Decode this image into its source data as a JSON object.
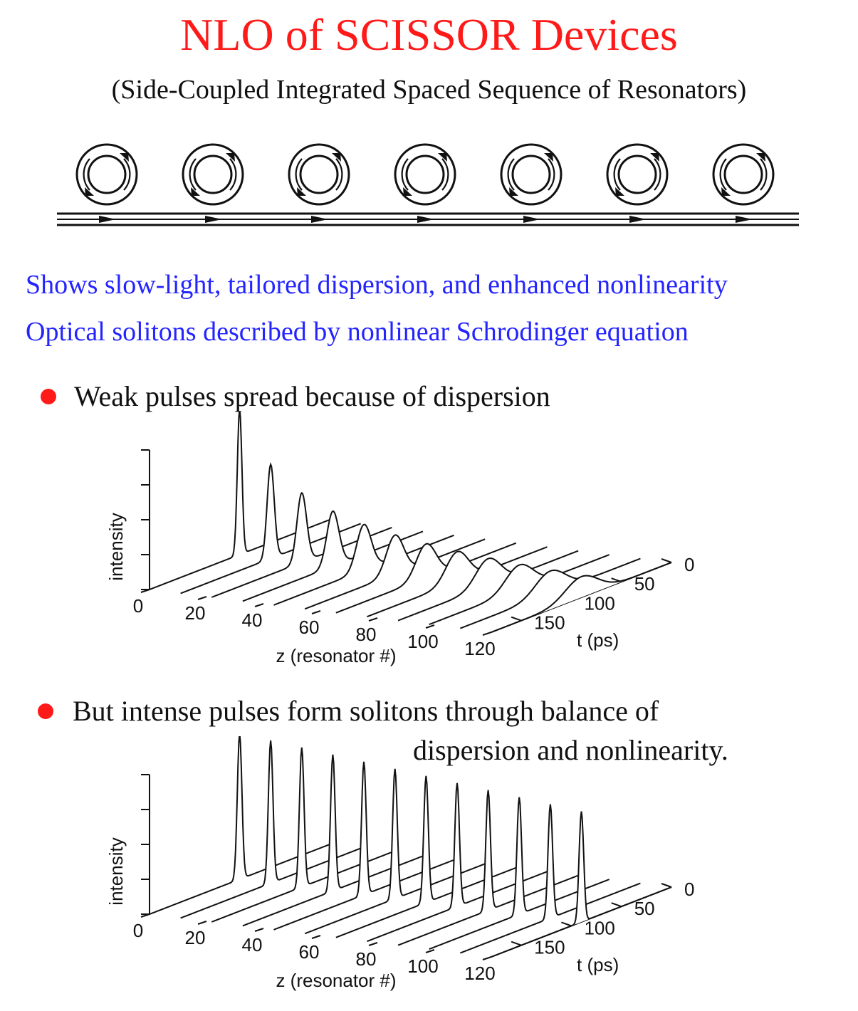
{
  "header": {
    "title": "NLO of SCISSOR Devices",
    "subtitle": "(Side-Coupled Integrated Spaced Sequence of Resonators)"
  },
  "diagram": {
    "resonator_count": 7,
    "arrow_count": 7
  },
  "notes": {
    "line1": "Shows slow-light, tailored dispersion, and enhanced nonlinearity",
    "line2": "Optical solitons described by nonlinear Schrodinger equation"
  },
  "bullets": {
    "b1": "Weak pulses spread because of dispersion",
    "b2_line1": "But intense pulses form solitons through balance of",
    "b2_line2": "dispersion and nonlinearity."
  },
  "plot_axes": {
    "y_label": "intensity",
    "z_label": "z (resonator #)",
    "t_label": "t (ps)",
    "z_ticks": [
      "0",
      "20",
      "40",
      "60",
      "80",
      "100",
      "120"
    ],
    "t_ticks": [
      "0",
      "50",
      "100",
      "150"
    ]
  },
  "colors": {
    "title": "#ff1a1a",
    "notes": "#2424ff",
    "bullet": "#ff1a1a",
    "text": "#111111"
  }
}
